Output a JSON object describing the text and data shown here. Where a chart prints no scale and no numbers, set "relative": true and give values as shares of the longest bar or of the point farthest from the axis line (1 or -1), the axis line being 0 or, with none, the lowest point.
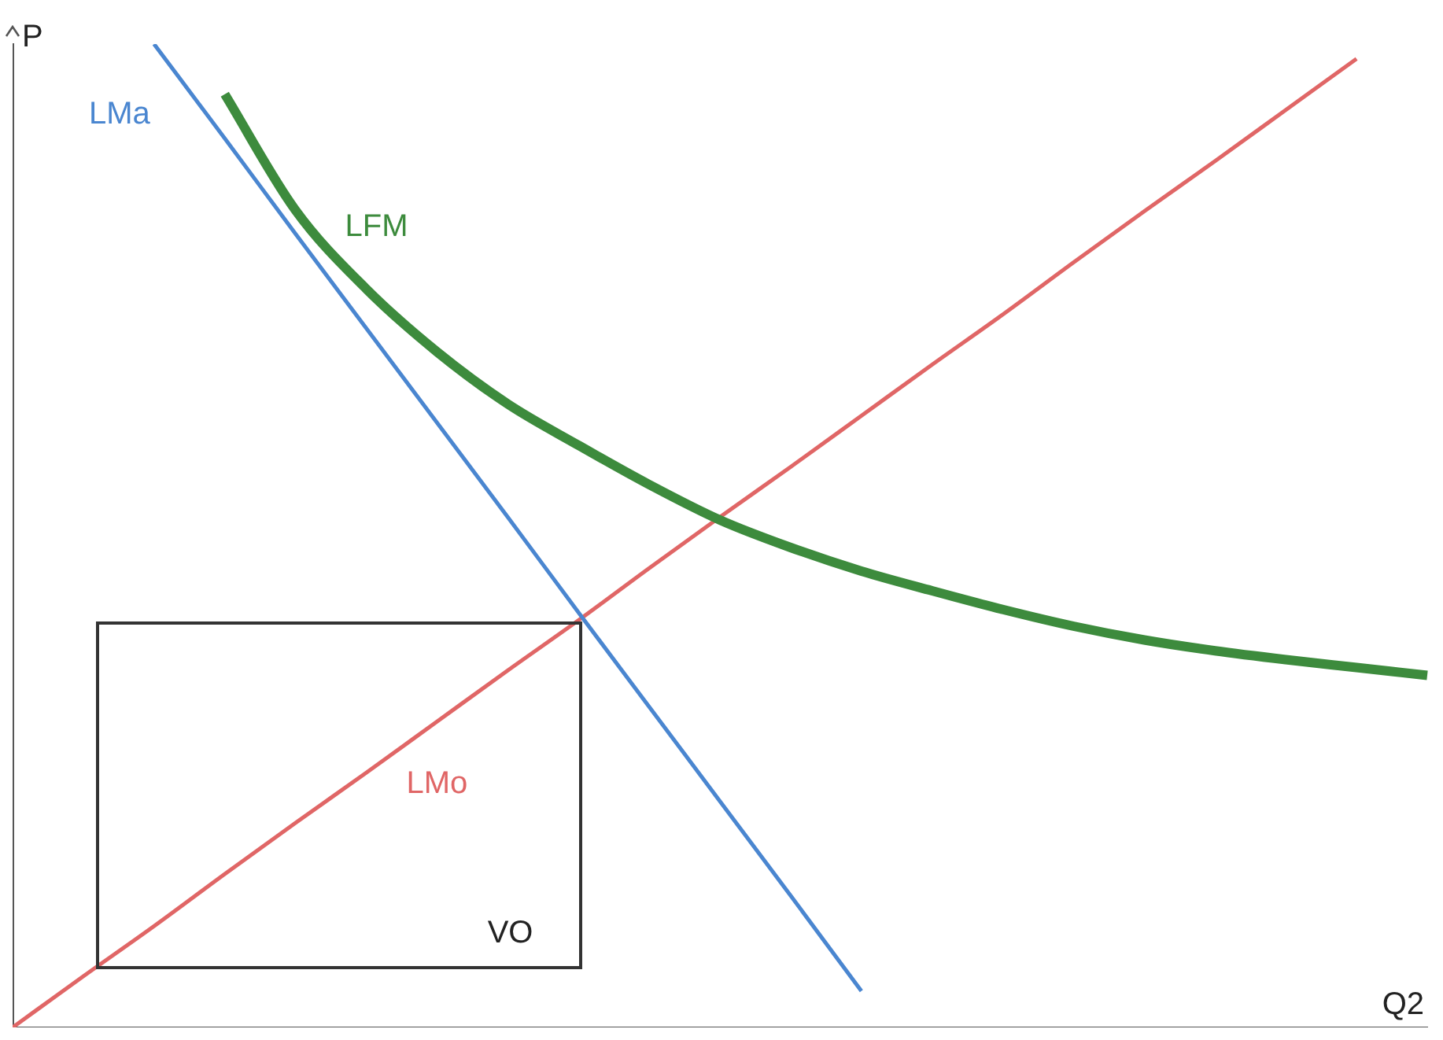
{
  "chart_data": {
    "type": "line",
    "relative": true,
    "xlabel": "Q2",
    "ylabel": "P",
    "categories": [
      null,
      null,
      null,
      null,
      null,
      null,
      null,
      null,
      null,
      null,
      null,
      null,
      null,
      null,
      null,
      null,
      null,
      null,
      null,
      null,
      null
    ],
    "series": [
      {
        "name": "LMa",
        "color": "#4a86d0",
        "values": [
          null,
          null,
          1,
          0.904,
          0.807,
          0.711,
          0.615,
          0.519,
          0.422,
          0.326,
          0.23,
          0.134,
          0.037,
          null,
          null,
          null,
          null,
          null,
          null,
          null,
          null
        ]
      },
      {
        "name": "LFM",
        "color": "#3d8b3d",
        "values": [
          null,
          null,
          null,
          0.949,
          0.831,
          0.751,
          0.687,
          0.634,
          0.592,
          0.552,
          0.516,
          0.488,
          0.464,
          0.444,
          0.425,
          0.408,
          0.394,
          0.383,
          0.374,
          0.366,
          0.358
        ]
      },
      {
        "name": "LMo",
        "color": "#e06666",
        "values": [
          0,
          0.052,
          0.103,
          0.156,
          0.208,
          0.259,
          0.311,
          0.363,
          0.414,
          0.467,
          0.519,
          0.57,
          0.622,
          0.674,
          0.725,
          0.778,
          0.83,
          0.881,
          0.933,
          0.985,
          null
        ]
      }
    ],
    "annotations": [
      "VO"
    ],
    "grid": false,
    "legend": false,
    "marker": "none",
    "line_style": "solid"
  }
}
